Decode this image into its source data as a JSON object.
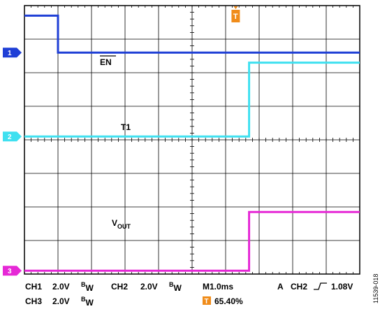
{
  "chart_data": {
    "type": "line",
    "title": "",
    "grid": true,
    "x_divisions": 10,
    "y_divisions": 8,
    "time_per_div": "M1.0ms",
    "series": [
      {
        "name": "EN",
        "channel": "1",
        "color": "#1f3fd6",
        "x": [
          0,
          1.0,
          1.0,
          10
        ],
        "y": [
          7.7,
          7.7,
          6.6,
          6.6
        ]
      },
      {
        "name": "T1",
        "channel": "2",
        "color": "#3fe0f0",
        "x": [
          0,
          6.7,
          6.7,
          10
        ],
        "y": [
          4.1,
          4.1,
          6.3,
          6.3
        ]
      },
      {
        "name": "VOUT",
        "channel": "3",
        "color": "#e628d6",
        "x": [
          0,
          6.7,
          6.7,
          10
        ],
        "y": [
          0.1,
          0.1,
          1.85,
          1.85
        ]
      }
    ],
    "channel_markers": [
      {
        "label": "1",
        "color": "#1f3fd6",
        "level": 6.6
      },
      {
        "label": "2",
        "color": "#3fe0f0",
        "level": 4.1
      },
      {
        "label": "3",
        "color": "#e628d6",
        "level": 0.1
      }
    ],
    "trigger_marker": {
      "label": "T",
      "color": "#f08c1a",
      "x": 6.3
    }
  },
  "labels": {
    "en_prefix": "",
    "en_main": "EN",
    "t1": "T1",
    "vout_main": "V",
    "vout_sub": "OUT"
  },
  "status": {
    "ch1": "CH1",
    "ch1_scale": "2.0V",
    "ch2": "CH2",
    "ch2_scale": "2.0V",
    "ch3": "CH3",
    "ch3_scale": "2.0V",
    "bw_main": "B",
    "bw_sub": "W",
    "timebase": "M1.0ms",
    "trigger_prefix": "A",
    "trigger_channel": "CH2",
    "trigger_level": "1.08V",
    "trigger_position": "65.40%",
    "trigger_icon": "T"
  },
  "figure_id": "11539-018"
}
